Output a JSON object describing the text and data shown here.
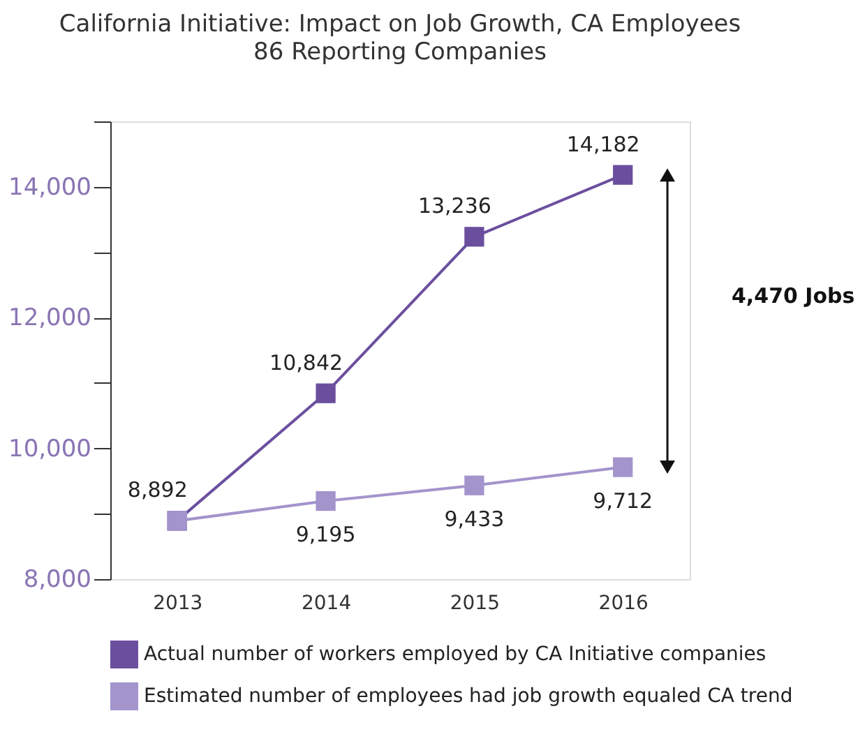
{
  "chart_data": {
    "type": "line",
    "title": "California Initiative: Impact on Job Growth, CA Employees",
    "subtitle": "86 Reporting Companies",
    "categories": [
      "2013",
      "2014",
      "2015",
      "2016"
    ],
    "series": [
      {
        "name": "Actual number of workers employed by CA Initiative companies",
        "color": "#6b4f9e",
        "values": [
          8892,
          10842,
          13236,
          14182
        ],
        "value_labels": [
          "8,892",
          "10,842",
          "13,236",
          "14,182"
        ]
      },
      {
        "name": "Estimated number of employees had job growth equaled CA trend",
        "color": "#a394cc",
        "values": [
          8892,
          9195,
          9433,
          9712
        ],
        "value_labels": [
          null,
          "9,195",
          "9,433",
          "9,712"
        ]
      }
    ],
    "ylim": [
      8000,
      15000
    ],
    "yticks": [
      {
        "value": 8000,
        "label": "8,000"
      },
      {
        "value": 9000,
        "label": null
      },
      {
        "value": 10000,
        "label": "10,000"
      },
      {
        "value": 11000,
        "label": null
      },
      {
        "value": 12000,
        "label": "12,000"
      },
      {
        "value": 13000,
        "label": null
      },
      {
        "value": 14000,
        "label": "14,000"
      },
      {
        "value": 15000,
        "label": null
      }
    ],
    "annotations": [
      "4,470 Jobs"
    ],
    "marker": "square",
    "line_style": "solid",
    "grid": false,
    "legend": "bottom"
  }
}
